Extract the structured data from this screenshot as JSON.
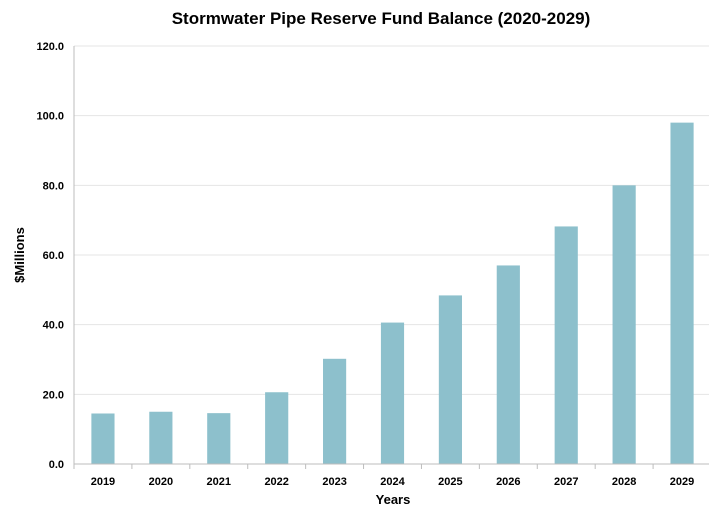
{
  "chart_data": {
    "type": "bar",
    "title": "Stormwater Pipe Reserve Fund Balance (2020-2029)",
    "xlabel": "Years",
    "ylabel": "$Millions",
    "categories": [
      "2019",
      "2020",
      "2021",
      "2022",
      "2023",
      "2024",
      "2025",
      "2026",
      "2027",
      "2028",
      "2029"
    ],
    "values": [
      14.5,
      15.0,
      14.6,
      20.6,
      30.2,
      40.6,
      48.4,
      57.0,
      68.2,
      80.0,
      98.0
    ],
    "ylim": [
      0,
      120
    ],
    "yticks": [
      "0.0",
      "20.0",
      "40.0",
      "60.0",
      "80.0",
      "100.0",
      "120.0"
    ],
    "ytick_values": [
      0,
      20,
      40,
      60,
      80,
      100,
      120
    ],
    "grid": true,
    "bar_color": "#8dc0cc",
    "gridline_color": "#e4e4e4",
    "axis_color": "#bdbdbd"
  }
}
